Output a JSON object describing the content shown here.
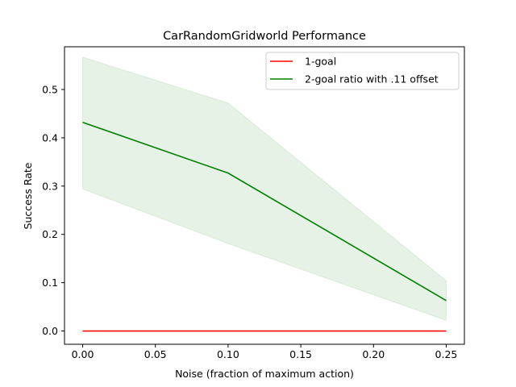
{
  "chart_data": {
    "type": "line",
    "title": "CarRandomGridworld Performance",
    "xlabel": "Noise (fraction of maximum action)",
    "ylabel": "Success Rate",
    "xlim": [
      -0.0125,
      0.2625
    ],
    "ylim": [
      -0.0275,
      0.5885
    ],
    "xticks": [
      0.0,
      0.05,
      0.1,
      0.15,
      0.2,
      0.25
    ],
    "xtick_labels": [
      "0.00",
      "0.05",
      "0.10",
      "0.15",
      "0.20",
      "0.25"
    ],
    "yticks": [
      0.0,
      0.1,
      0.2,
      0.3,
      0.4,
      0.5
    ],
    "ytick_labels": [
      "0.0",
      "0.1",
      "0.2",
      "0.3",
      "0.4",
      "0.5"
    ],
    "grid": false,
    "legend_position": "top-right",
    "x": [
      0.0,
      0.1,
      0.25
    ],
    "series": [
      {
        "name": "1-goal",
        "color": "#ff0000",
        "values": [
          0.0,
          0.0,
          0.0
        ]
      },
      {
        "name": "2-goal ratio with .11 offset",
        "color": "#008000",
        "values": [
          0.432,
          0.327,
          0.063
        ],
        "band_lower": [
          0.294,
          0.181,
          0.022
        ],
        "band_upper": [
          0.567,
          0.472,
          0.104
        ],
        "band_color": "#008000"
      }
    ]
  }
}
